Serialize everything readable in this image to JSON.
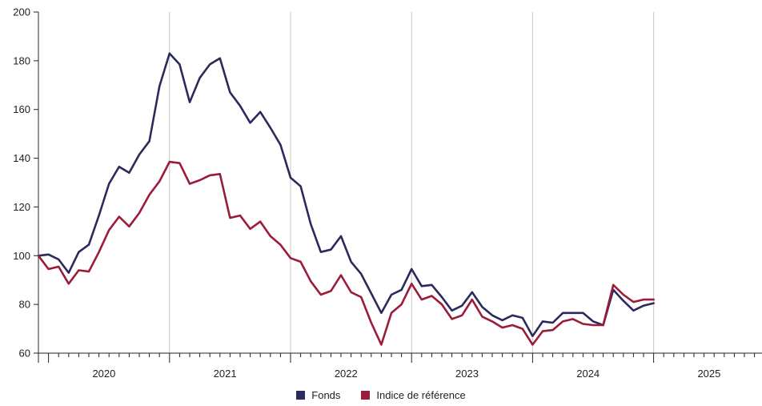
{
  "chart_data": {
    "type": "line",
    "title": "",
    "xlabel": "",
    "ylabel": "",
    "ylim": [
      60,
      200
    ],
    "yticks": [
      60,
      80,
      100,
      120,
      140,
      160,
      180,
      200
    ],
    "years": [
      "2020",
      "2021",
      "2022",
      "2023",
      "2024",
      "2025"
    ],
    "grid": "vertical lines at year starts",
    "legend": "bottom-center",
    "x_start": "2019-12",
    "series": [
      {
        "name": "Fonds",
        "color": "#2b2a5c",
        "values": [
          100,
          100.5,
          98.5,
          93,
          101.5,
          104.5,
          116.5,
          129.5,
          136.5,
          134,
          141.5,
          147,
          169.5,
          183,
          178.5,
          163,
          173,
          178.5,
          181,
          167,
          161.5,
          154.5,
          159,
          152.5,
          145.5,
          132,
          128.5,
          113,
          101.5,
          102.5,
          108,
          97.5,
          92.5,
          84.5,
          76.5,
          84,
          86,
          94.5,
          87.5,
          88,
          83,
          77.5,
          79.5,
          85,
          79,
          75.5,
          73.5,
          75.5,
          74.5,
          67,
          73,
          72.5,
          76.5,
          76.5,
          76.5,
          73,
          71.5,
          86,
          81.5,
          77.5,
          79.5,
          80.5
        ]
      },
      {
        "name": "Indice de référence",
        "color": "#9b1b3a",
        "values": [
          100,
          94.5,
          95.5,
          88.5,
          94,
          93.5,
          101.5,
          110.5,
          116,
          112,
          117.5,
          125,
          130.5,
          138.5,
          138,
          129.5,
          131,
          133,
          133.5,
          115.5,
          116.5,
          111,
          114,
          108,
          104.5,
          99,
          97.5,
          89.5,
          84,
          85.5,
          92,
          85,
          83,
          72.5,
          63.5,
          76.5,
          80,
          88.5,
          82,
          83.5,
          80,
          74,
          75.5,
          82,
          75,
          73,
          70.5,
          71.5,
          70,
          63.5,
          69,
          69.5,
          73,
          74,
          72,
          71.5,
          71.5,
          88,
          84,
          81,
          82,
          82
        ]
      }
    ]
  }
}
